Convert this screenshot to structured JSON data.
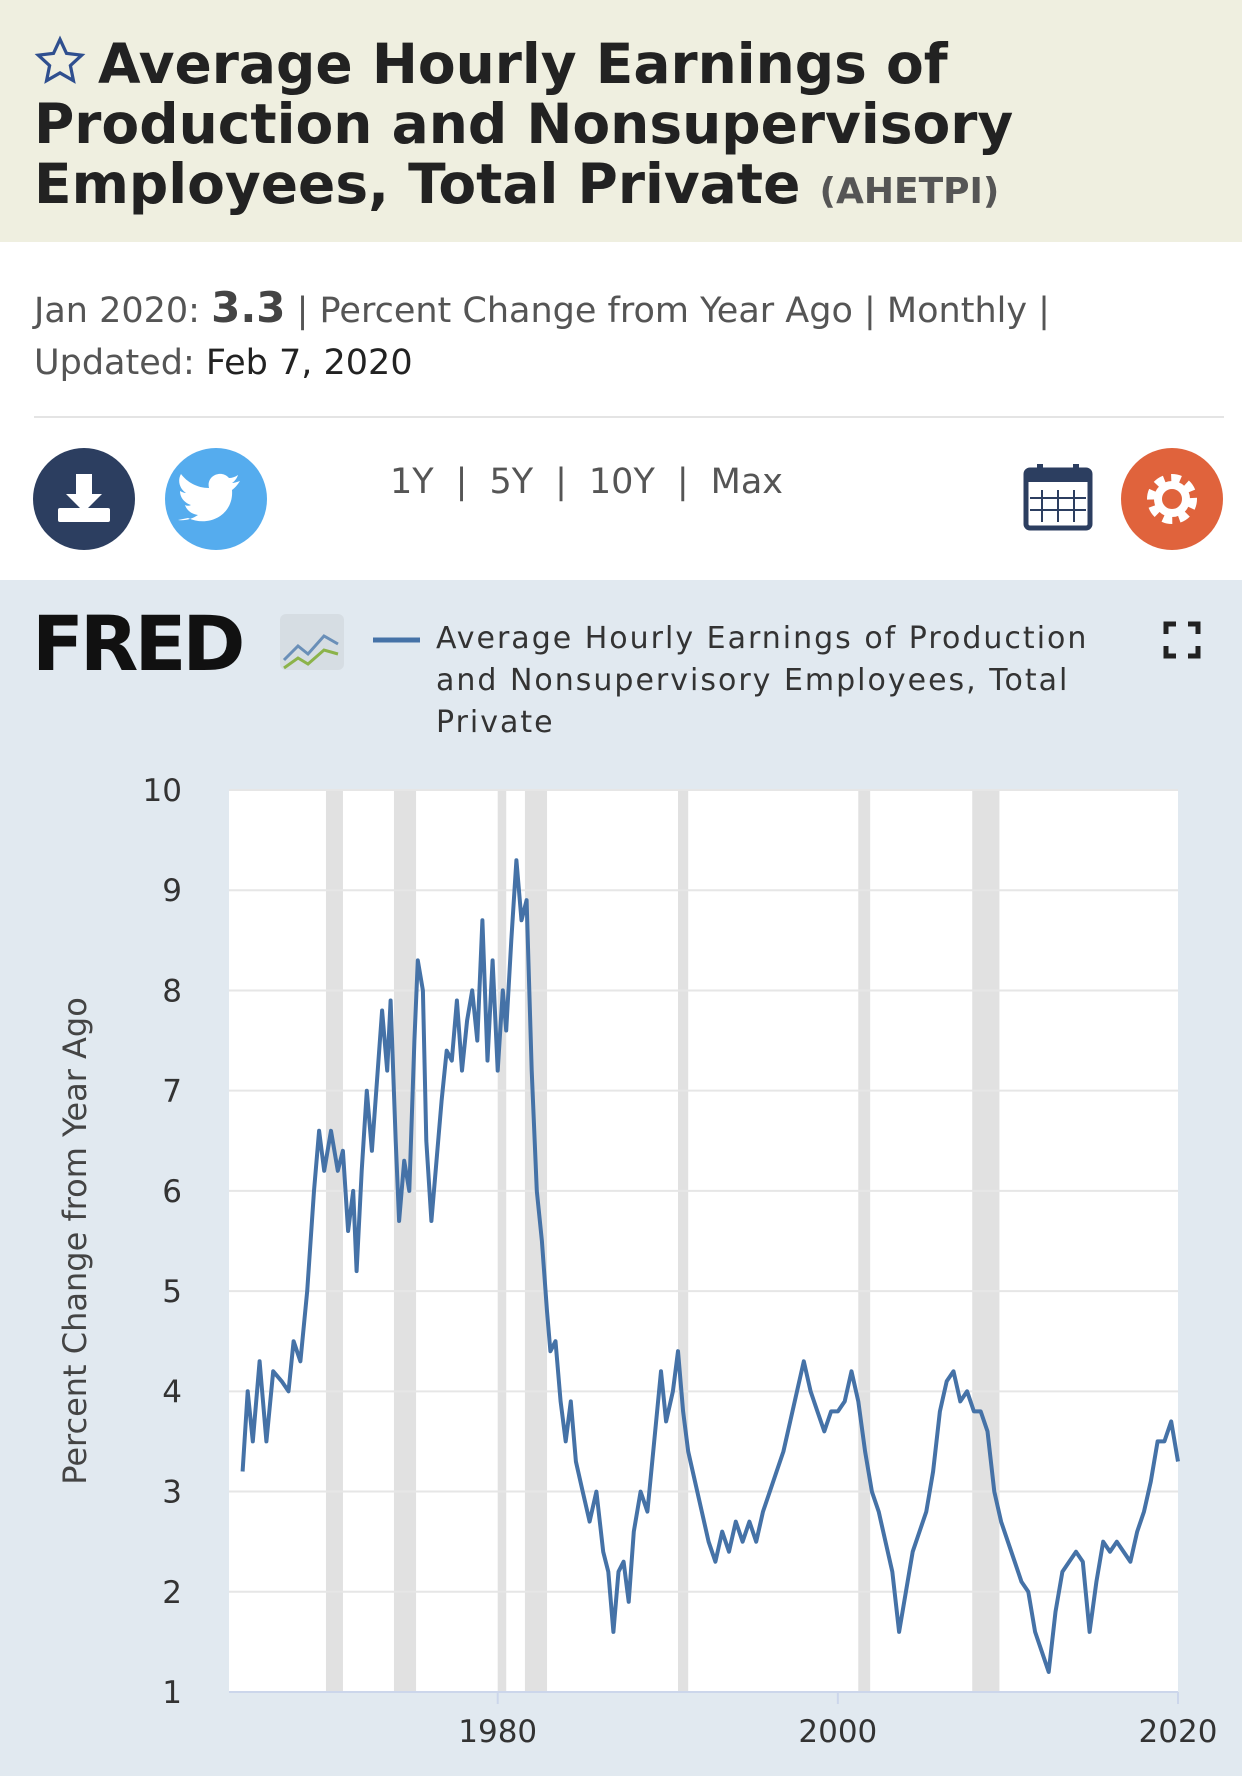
{
  "header": {
    "title": "Average Hourly Earnings of Production and Nonsupervisory Employees, Total Private",
    "series_id": "(AHETPI)"
  },
  "info": {
    "date": "Jan 2020:",
    "value": "3.3",
    "details": "| Percent Change from Year Ago | Monthly |",
    "updated_label": "Updated:",
    "updated": "Feb 7, 2020"
  },
  "ranges": [
    "1Y",
    "5Y",
    "10Y",
    "Max"
  ],
  "logo": "FRED",
  "chart_data": {
    "type": "line",
    "ylabel": "Percent Change from Year Ago",
    "x": [
      1965.0,
      1965.3,
      1965.6,
      1966,
      1966.4,
      1966.8,
      1967.3,
      1967.7,
      1968,
      1968.4,
      1968.8,
      1969.2,
      1969.5,
      1969.8,
      1970.2,
      1970.6,
      1970.9,
      1971.2,
      1971.5,
      1971.7,
      1972,
      1972.3,
      1972.6,
      1972.9,
      1973.2,
      1973.5,
      1973.7,
      1974,
      1974.2,
      1974.5,
      1974.8,
      1975.1,
      1975.3,
      1975.6,
      1975.8,
      1976.1,
      1976.4,
      1976.7,
      1977,
      1977.3,
      1977.6,
      1977.9,
      1978.2,
      1978.5,
      1978.8,
      1979.1,
      1979.4,
      1979.7,
      1980,
      1980.3,
      1980.5,
      1980.8,
      1981.1,
      1981.4,
      1981.7,
      1982,
      1982.3,
      1982.6,
      1982.9,
      1983.1,
      1983.4,
      1983.7,
      1984,
      1984.3,
      1984.6,
      1985,
      1985.4,
      1985.8,
      1986.2,
      1986.5,
      1986.8,
      1987.1,
      1987.4,
      1987.7,
      1988,
      1988.4,
      1988.8,
      1989.2,
      1989.6,
      1989.9,
      1990.3,
      1990.6,
      1990.9,
      1991.2,
      1991.6,
      1992,
      1992.4,
      1992.8,
      1993.2,
      1993.6,
      1994,
      1994.4,
      1994.8,
      1995.2,
      1995.6,
      1996,
      1996.4,
      1996.8,
      1997.2,
      1997.6,
      1998,
      1998.4,
      1998.8,
      1999.2,
      1999.6,
      2000,
      2000.4,
      2000.8,
      2001.2,
      2001.6,
      2002,
      2002.4,
      2002.8,
      2003.2,
      2003.6,
      2004,
      2004.4,
      2004.8,
      2005.2,
      2005.6,
      2006,
      2006.4,
      2006.8,
      2007.2,
      2007.6,
      2008,
      2008.4,
      2008.8,
      2009.2,
      2009.6,
      2010,
      2010.4,
      2010.8,
      2011.2,
      2011.6,
      2012,
      2012.4,
      2012.8,
      2013.2,
      2013.6,
      2014,
      2014.4,
      2014.8,
      2015.2,
      2015.6,
      2016,
      2016.4,
      2016.8,
      2017.2,
      2017.6,
      2018,
      2018.4,
      2018.8,
      2019.2,
      2019.6,
      2020.0
    ],
    "series": [
      {
        "name": "Average Hourly Earnings of Production and Nonsupervisory Employees, Total Private",
        "color": "#4572a7",
        "values": [
          3.2,
          4.0,
          3.5,
          4.3,
          3.5,
          4.2,
          4.1,
          4.0,
          4.5,
          4.3,
          5.0,
          6.0,
          6.6,
          6.2,
          6.6,
          6.2,
          6.4,
          5.6,
          6.0,
          5.2,
          6.2,
          7.0,
          6.4,
          7.1,
          7.8,
          7.2,
          7.9,
          6.5,
          5.7,
          6.3,
          6.0,
          7.5,
          8.3,
          8.0,
          6.5,
          5.7,
          6.3,
          6.9,
          7.4,
          7.3,
          7.9,
          7.2,
          7.7,
          8.0,
          7.5,
          8.7,
          7.3,
          8.3,
          7.2,
          8.0,
          7.6,
          8.5,
          9.3,
          8.7,
          8.9,
          7.2,
          6.0,
          5.5,
          4.8,
          4.4,
          4.5,
          3.9,
          3.5,
          3.9,
          3.3,
          3.0,
          2.7,
          3.0,
          2.4,
          2.2,
          1.6,
          2.2,
          2.3,
          1.9,
          2.6,
          3.0,
          2.8,
          3.5,
          4.2,
          3.7,
          4.0,
          4.4,
          3.8,
          3.4,
          3.1,
          2.8,
          2.5,
          2.3,
          2.6,
          2.4,
          2.7,
          2.5,
          2.7,
          2.5,
          2.8,
          3.0,
          3.2,
          3.4,
          3.7,
          4.0,
          4.3,
          4.0,
          3.8,
          3.6,
          3.8,
          3.8,
          3.9,
          4.2,
          3.9,
          3.4,
          3.0,
          2.8,
          2.5,
          2.2,
          1.6,
          2.0,
          2.4,
          2.6,
          2.8,
          3.2,
          3.8,
          4.1,
          4.2,
          3.9,
          4.0,
          3.8,
          3.8,
          3.6,
          3.0,
          2.7,
          2.5,
          2.3,
          2.1,
          2.0,
          1.6,
          1.4,
          1.2,
          1.8,
          2.2,
          2.3,
          2.4,
          2.3,
          1.6,
          2.1,
          2.5,
          2.4,
          2.5,
          2.4,
          2.3,
          2.6,
          2.8,
          3.1,
          3.5,
          3.5,
          3.7,
          3.3
        ]
      }
    ],
    "recessions": [
      [
        1969.9,
        1970.9
      ],
      [
        1973.9,
        1975.2
      ],
      [
        1980.0,
        1980.5
      ],
      [
        1981.6,
        1982.9
      ],
      [
        1990.6,
        1991.2
      ],
      [
        2001.2,
        2001.9
      ],
      [
        2007.9,
        2009.5
      ]
    ],
    "xlim": [
      1964.2,
      2020.0
    ],
    "xticks": [
      1980,
      2000,
      2020
    ],
    "ylim": [
      1,
      10
    ],
    "yticks": [
      1,
      2,
      3,
      4,
      5,
      6,
      7,
      8,
      9,
      10
    ],
    "grid": true
  }
}
